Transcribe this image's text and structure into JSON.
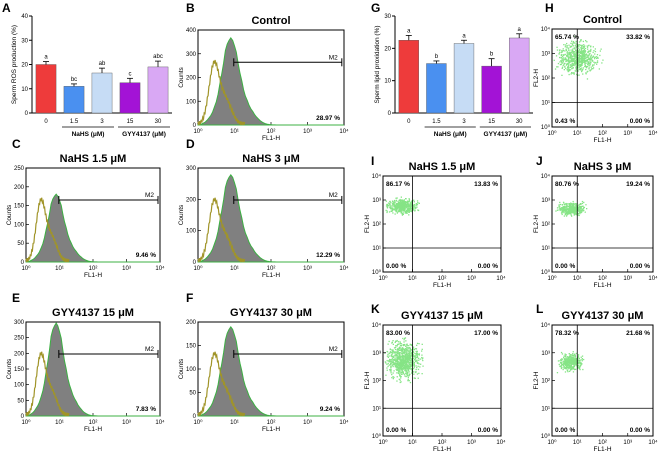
{
  "colors": {
    "red": "#ee3b3b",
    "blue": "#4a90f0",
    "lightblue": "#c6dcf5",
    "purple": "#a313d6",
    "lavender": "#d9a8f4",
    "hist_fill": "#808080",
    "hist_outline": "#3cb043",
    "control_line": "#a09428",
    "scatter": "#86e486"
  },
  "chart_data": [
    {
      "letter": "A",
      "type": "bar",
      "ylabel": "Sperm ROS production (%)",
      "ylim": [
        0,
        40
      ],
      "yticks": [
        "0",
        "10",
        "20",
        "30",
        "40"
      ],
      "categories": [
        "0",
        "1.5",
        "3",
        "15",
        "30"
      ],
      "values": [
        20,
        11,
        16.5,
        12.5,
        19
      ],
      "errors": [
        1.2,
        1.0,
        2.0,
        1.8,
        2.4
      ],
      "letters": [
        "a",
        "bc",
        "ab",
        "c",
        "abc"
      ],
      "groups": [
        "NaHS (μM)",
        "GYY4137 (μM)"
      ],
      "bar_colors": [
        "#ee3b3b",
        "#4a90f0",
        "#c6dcf5",
        "#a313d6",
        "#d9a8f4"
      ]
    },
    {
      "letter": "G",
      "type": "bar",
      "ylabel": "Sperm lipid proxidation (%)",
      "ylim": [
        0,
        30
      ],
      "yticks": [
        "0",
        "10",
        "20",
        "30"
      ],
      "categories": [
        "0",
        "1.5",
        "3",
        "15",
        "30"
      ],
      "values": [
        22.5,
        15.3,
        21.5,
        14.5,
        23.2
      ],
      "errors": [
        1.5,
        0.8,
        1.0,
        2.3,
        1.3
      ],
      "letters": [
        "a",
        "b",
        "a",
        "b",
        "a"
      ],
      "groups": [
        "NaHS (μM)",
        "GYY4137 (μM)"
      ],
      "bar_colors": [
        "#ee3b3b",
        "#4a90f0",
        "#c6dcf5",
        "#a313d6",
        "#d9a8f4"
      ]
    },
    {
      "letter": "B",
      "type": "area",
      "title": "Control",
      "ylabel": "Counts",
      "xlabel": "FL1-H",
      "gate": "M2",
      "percent": "28.97 %",
      "peak": 0.89,
      "yticks": [
        "0",
        "100",
        "200",
        "300",
        "400"
      ],
      "xticks": [
        "10⁰",
        "10¹",
        "10²",
        "10³",
        "10⁴"
      ]
    },
    {
      "letter": "C",
      "type": "area",
      "title": "NaHS 1.5 μM",
      "ylabel": "Counts",
      "xlabel": "FL1-H",
      "gate": "M2",
      "percent": "9.46 %",
      "peak": 0.7,
      "yticks": [
        "0",
        "50",
        "100",
        "150",
        "200",
        "250"
      ],
      "xticks": [
        "10⁰",
        "10¹",
        "10²",
        "10³",
        "10⁴"
      ]
    },
    {
      "letter": "D",
      "type": "area",
      "title": "NaHS 3 μM",
      "ylabel": "Counts",
      "xlabel": "FL1-H",
      "gate": "M2",
      "percent": "12.29 %",
      "peak": 0.9,
      "yticks": [
        "0",
        "100",
        "200",
        "300"
      ],
      "xticks": [
        "10⁰",
        "10¹",
        "10²",
        "10³",
        "10⁴"
      ]
    },
    {
      "letter": "E",
      "type": "area",
      "title": "GYY4137 15 μM",
      "ylabel": "Counts",
      "xlabel": "FL1-H",
      "gate": "M2",
      "percent": "7.83 %",
      "peak": 0.96,
      "yticks": [
        "0",
        "50",
        "100",
        "150",
        "200",
        "250",
        "300"
      ],
      "xticks": [
        "10⁰",
        "10¹",
        "10²",
        "10³",
        "10⁴"
      ]
    },
    {
      "letter": "F",
      "type": "area",
      "title": "GYY4137 30 μM",
      "ylabel": "Counts",
      "xlabel": "FL1-H",
      "gate": "M2",
      "percent": "9.24 %",
      "peak": 0.92,
      "yticks": [
        "0",
        "50",
        "100",
        "150",
        "200"
      ],
      "xticks": [
        "10⁰",
        "10¹",
        "10²",
        "10³",
        "10⁴"
      ]
    },
    {
      "letter": "H",
      "type": "scatter",
      "title": "Control",
      "xlabel": "FL1-H",
      "ylabel": "FL2-H",
      "q_ul": "65.74 %",
      "q_ur": "33.82 %",
      "q_ll": "0.43 %",
      "q_lr": "0.00 %",
      "xticks": [
        "10⁰",
        "10¹",
        "10²",
        "10³",
        "10⁴"
      ],
      "yticks": [
        "10⁰",
        "10¹",
        "10²",
        "10³",
        "10⁴"
      ]
    },
    {
      "letter": "I",
      "type": "scatter",
      "title": "NaHS 1.5 μM",
      "xlabel": "FL1-H",
      "ylabel": "FL2-H",
      "q_ul": "86.17 %",
      "q_ur": "13.83 %",
      "q_ll": "0.00 %",
      "q_lr": "0.00 %",
      "xticks": [
        "10⁰",
        "10¹",
        "10²",
        "10³",
        "10⁴"
      ],
      "yticks": [
        "10⁰",
        "10¹",
        "10²",
        "10³",
        "10⁴"
      ]
    },
    {
      "letter": "J",
      "type": "scatter",
      "title": "NaHS 3 μM",
      "xlabel": "FL1-H",
      "ylabel": "FL2-H",
      "q_ul": "80.76 %",
      "q_ur": "19.24 %",
      "q_ll": "0.00 %",
      "q_lr": "0.00 %",
      "xticks": [
        "10⁰",
        "10¹",
        "10²",
        "10³",
        "10⁴"
      ],
      "yticks": [
        "10⁰",
        "10¹",
        "10²",
        "10³",
        "10⁴"
      ]
    },
    {
      "letter": "K",
      "type": "scatter",
      "title": "GYY4137 15 μM",
      "xlabel": "FL1-H",
      "ylabel": "FL2-H",
      "q_ul": "83.00 %",
      "q_ur": "17.00 %",
      "q_ll": "0.00 %",
      "q_lr": "0.00 %",
      "xticks": [
        "10⁰",
        "10¹",
        "10²",
        "10³",
        "10⁴"
      ],
      "yticks": [
        "10⁰",
        "10¹",
        "10²",
        "10³",
        "10⁴"
      ]
    },
    {
      "letter": "L",
      "type": "scatter",
      "title": "GYY4137 30 μM",
      "xlabel": "FL1-H",
      "ylabel": "FL2-H",
      "q_ul": "78.32 %",
      "q_ur": "21.68 %",
      "q_ll": "0.00 %",
      "q_lr": "0.00 %",
      "xticks": [
        "10⁰",
        "10¹",
        "10²",
        "10³",
        "10⁴"
      ],
      "yticks": [
        "10⁰",
        "10¹",
        "10²",
        "10³",
        "10⁴"
      ]
    }
  ]
}
